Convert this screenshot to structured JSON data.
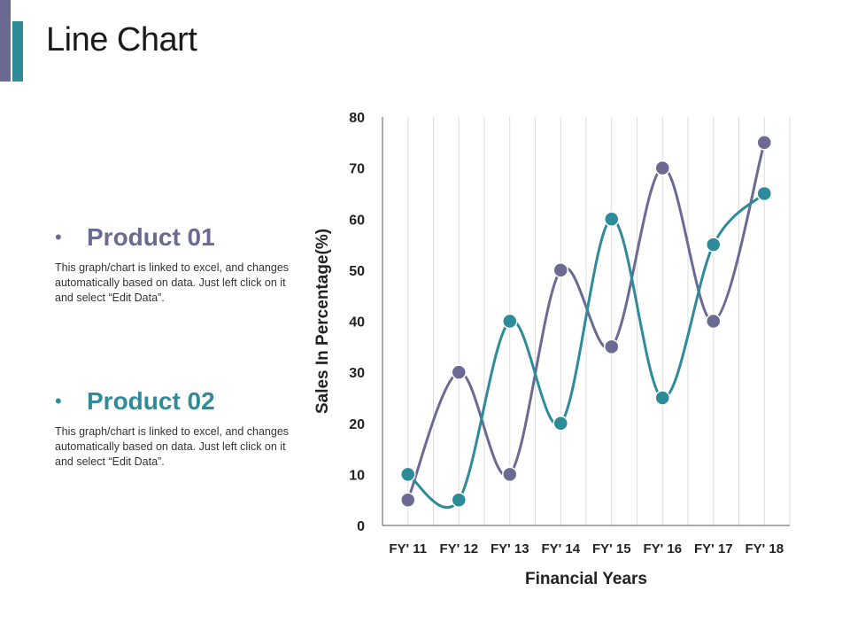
{
  "page": {
    "title": "Line Chart"
  },
  "products": [
    {
      "bullet": "•",
      "name": "Product 01",
      "description": "This graph/chart is linked to excel, and changes automatically based on data. Just left click on it and select “Edit Data”."
    },
    {
      "bullet": "•",
      "name": "Product 02",
      "description": "This graph/chart is linked to excel, and changes automatically based on data. Just left click on it and select “Edit Data”."
    }
  ],
  "colors": {
    "product_01": "#6a6a92",
    "product_02": "#2e8b9a",
    "grid": "#dcdcdc",
    "axis": "#555555"
  },
  "chart_data": {
    "type": "line",
    "xlabel": "Financial Years",
    "ylabel": "Sales In Percentage(%)",
    "categories": [
      "FY' 11",
      "FY' 12",
      "FY' 13",
      "FY' 14",
      "FY' 15",
      "FY' 16",
      "FY' 17",
      "FY' 18"
    ],
    "ylim": [
      0,
      80
    ],
    "yticks": [
      0,
      10,
      20,
      30,
      40,
      50,
      60,
      70,
      80
    ],
    "smooth": true,
    "grid": "vertical",
    "series": [
      {
        "name": "Product 01",
        "color": "#6a6a92",
        "values": [
          5,
          30,
          10,
          50,
          35,
          70,
          40,
          75
        ]
      },
      {
        "name": "Product 02",
        "color": "#2e8b9a",
        "values": [
          10,
          5,
          40,
          20,
          60,
          25,
          55,
          65
        ]
      }
    ]
  }
}
